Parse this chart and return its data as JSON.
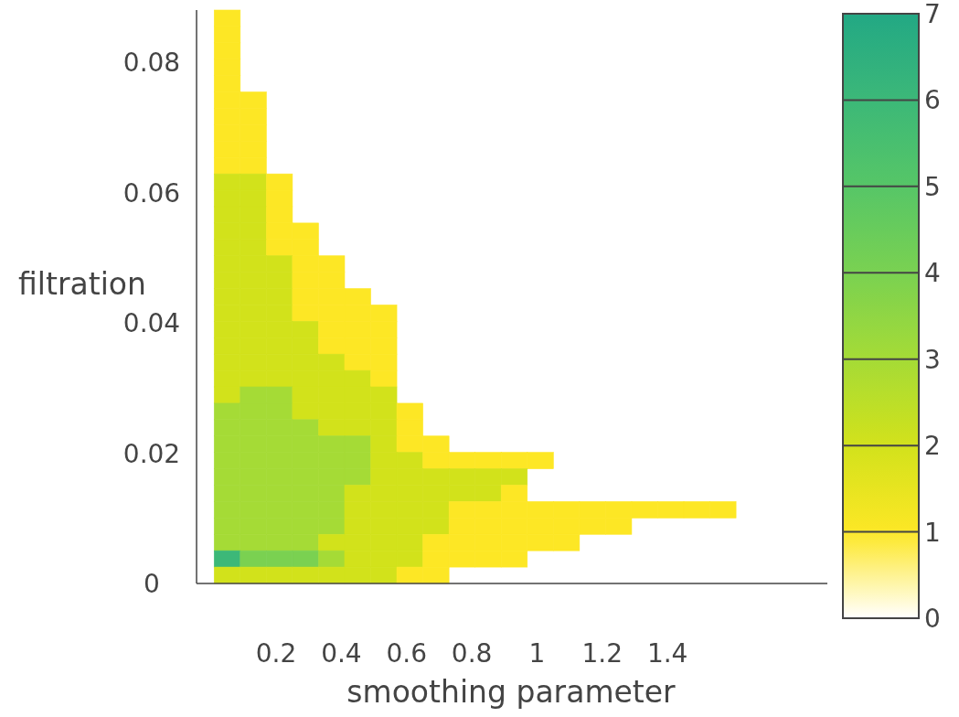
{
  "chart_data": {
    "type": "heatmap",
    "xlabel": "smoothing parameter",
    "ylabel": "filtration",
    "x": [
      0.05,
      0.13,
      0.21,
      0.29,
      0.37,
      0.45,
      0.53,
      0.61,
      0.69,
      0.77,
      0.85,
      0.93,
      1.01,
      1.09,
      1.17,
      1.25,
      1.33,
      1.41,
      1.49,
      1.57
    ],
    "cells": [
      [
        1,
        null,
        null,
        null,
        null,
        null,
        null,
        null,
        null,
        null,
        null,
        null,
        null,
        null,
        null,
        null,
        null,
        null,
        null,
        null
      ],
      [
        1,
        null,
        null,
        null,
        null,
        null,
        null,
        null,
        null,
        null,
        null,
        null,
        null,
        null,
        null,
        null,
        null,
        null,
        null,
        null
      ],
      [
        1,
        null,
        null,
        null,
        null,
        null,
        null,
        null,
        null,
        null,
        null,
        null,
        null,
        null,
        null,
        null,
        null,
        null,
        null,
        null
      ],
      [
        1,
        null,
        null,
        null,
        null,
        null,
        null,
        null,
        null,
        null,
        null,
        null,
        null,
        null,
        null,
        null,
        null,
        null,
        null,
        null
      ],
      [
        1,
        null,
        null,
        null,
        null,
        null,
        null,
        null,
        null,
        null,
        null,
        null,
        null,
        null,
        null,
        null,
        null,
        null,
        null,
        null
      ],
      [
        1,
        1,
        null,
        null,
        null,
        null,
        null,
        null,
        null,
        null,
        null,
        null,
        null,
        null,
        null,
        null,
        null,
        null,
        null,
        null
      ],
      [
        1,
        1,
        null,
        null,
        null,
        null,
        null,
        null,
        null,
        null,
        null,
        null,
        null,
        null,
        null,
        null,
        null,
        null,
        null,
        null
      ],
      [
        1,
        1,
        null,
        null,
        null,
        null,
        null,
        null,
        null,
        null,
        null,
        null,
        null,
        null,
        null,
        null,
        null,
        null,
        null,
        null
      ],
      [
        1,
        1,
        null,
        null,
        null,
        null,
        null,
        null,
        null,
        null,
        null,
        null,
        null,
        null,
        null,
        null,
        null,
        null,
        null,
        null
      ],
      [
        1,
        1,
        null,
        null,
        null,
        null,
        null,
        null,
        null,
        null,
        null,
        null,
        null,
        null,
        null,
        null,
        null,
        null,
        null,
        null
      ],
      [
        2,
        2,
        1,
        null,
        null,
        null,
        null,
        null,
        null,
        null,
        null,
        null,
        null,
        null,
        null,
        null,
        null,
        null,
        null,
        null
      ],
      [
        2,
        2,
        1,
        null,
        null,
        null,
        null,
        null,
        null,
        null,
        null,
        null,
        null,
        null,
        null,
        null,
        null,
        null,
        null,
        null
      ],
      [
        2,
        2,
        1,
        null,
        null,
        null,
        null,
        null,
        null,
        null,
        null,
        null,
        null,
        null,
        null,
        null,
        null,
        null,
        null,
        null
      ],
      [
        2,
        2,
        1,
        1,
        null,
        null,
        null,
        null,
        null,
        null,
        null,
        null,
        null,
        null,
        null,
        null,
        null,
        null,
        null,
        null
      ],
      [
        2,
        2,
        1,
        1,
        null,
        null,
        null,
        null,
        null,
        null,
        null,
        null,
        null,
        null,
        null,
        null,
        null,
        null,
        null,
        null
      ],
      [
        2,
        2,
        2,
        1,
        1,
        null,
        null,
        null,
        null,
        null,
        null,
        null,
        null,
        null,
        null,
        null,
        null,
        null,
        null,
        null
      ],
      [
        2,
        2,
        2,
        1,
        1,
        null,
        null,
        null,
        null,
        null,
        null,
        null,
        null,
        null,
        null,
        null,
        null,
        null,
        null,
        null
      ],
      [
        2,
        2,
        2,
        1,
        1,
        1,
        null,
        null,
        null,
        null,
        null,
        null,
        null,
        null,
        null,
        null,
        null,
        null,
        null,
        null
      ],
      [
        2,
        2,
        2,
        1,
        1,
        1,
        1,
        null,
        null,
        null,
        null,
        null,
        null,
        null,
        null,
        null,
        null,
        null,
        null,
        null
      ],
      [
        2,
        2,
        2,
        2,
        1,
        1,
        1,
        null,
        null,
        null,
        null,
        null,
        null,
        null,
        null,
        null,
        null,
        null,
        null,
        null
      ],
      [
        2,
        2,
        2,
        2,
        1,
        1,
        1,
        null,
        null,
        null,
        null,
        null,
        null,
        null,
        null,
        null,
        null,
        null,
        null,
        null
      ],
      [
        2,
        2,
        2,
        2,
        2,
        1,
        1,
        null,
        null,
        null,
        null,
        null,
        null,
        null,
        null,
        null,
        null,
        null,
        null,
        null
      ],
      [
        2,
        2,
        2,
        2,
        2,
        2,
        1,
        null,
        null,
        null,
        null,
        null,
        null,
        null,
        null,
        null,
        null,
        null,
        null,
        null
      ],
      [
        2,
        3,
        3,
        2,
        2,
        2,
        2,
        null,
        null,
        null,
        null,
        null,
        null,
        null,
        null,
        null,
        null,
        null,
        null,
        null
      ],
      [
        3,
        3,
        3,
        2,
        2,
        2,
        2,
        1,
        null,
        null,
        null,
        null,
        null,
        null,
        null,
        null,
        null,
        null,
        null,
        null
      ],
      [
        3,
        3,
        3,
        3,
        2,
        2,
        2,
        1,
        null,
        null,
        null,
        null,
        null,
        null,
        null,
        null,
        null,
        null,
        null,
        null
      ],
      [
        3,
        3,
        3,
        3,
        3,
        3,
        2,
        1,
        1,
        null,
        null,
        null,
        null,
        null,
        null,
        null,
        null,
        null,
        null,
        null
      ],
      [
        3,
        3,
        3,
        3,
        3,
        3,
        2,
        2,
        1,
        1,
        1,
        1,
        1,
        null,
        null,
        null,
        null,
        null,
        null,
        null
      ],
      [
        3,
        3,
        3,
        3,
        3,
        3,
        2,
        2,
        2,
        2,
        2,
        2,
        null,
        null,
        null,
        null,
        null,
        null,
        null,
        null
      ],
      [
        3,
        3,
        3,
        3,
        3,
        2,
        2,
        2,
        2,
        2,
        2,
        1,
        null,
        null,
        null,
        null,
        null,
        null,
        null,
        null
      ],
      [
        3,
        3,
        3,
        3,
        3,
        2,
        2,
        2,
        2,
        1,
        1,
        1,
        1,
        1,
        1,
        1,
        1,
        1,
        1,
        1
      ],
      [
        3,
        3,
        3,
        3,
        3,
        2,
        2,
        2,
        2,
        1,
        1,
        1,
        1,
        1,
        1,
        1,
        null,
        null,
        null,
        null
      ],
      [
        3,
        3,
        3,
        3,
        2,
        2,
        2,
        2,
        1,
        1,
        1,
        1,
        1,
        1,
        null,
        null,
        null,
        null,
        null,
        null
      ],
      [
        6,
        4,
        4,
        4,
        3,
        2,
        2,
        2,
        1,
        1,
        1,
        1,
        null,
        null,
        null,
        null,
        null,
        null,
        null,
        null
      ],
      [
        2,
        2,
        2,
        2,
        2,
        2,
        2,
        1,
        1,
        null,
        null,
        null,
        null,
        null,
        null,
        null,
        null,
        null,
        null,
        null
      ]
    ],
    "xlim": [
      -0.044,
      1.89
    ],
    "ylim": [
      0,
      0.088
    ],
    "xticks": [
      0.2,
      0.4,
      0.6,
      0.8,
      1,
      1.2,
      1.4
    ],
    "yticks": [
      0,
      0.02,
      0.04,
      0.06,
      0.08
    ],
    "clim": [
      0,
      7
    ],
    "cticks": [
      0,
      1,
      2,
      3,
      4,
      5,
      6,
      7
    ]
  }
}
